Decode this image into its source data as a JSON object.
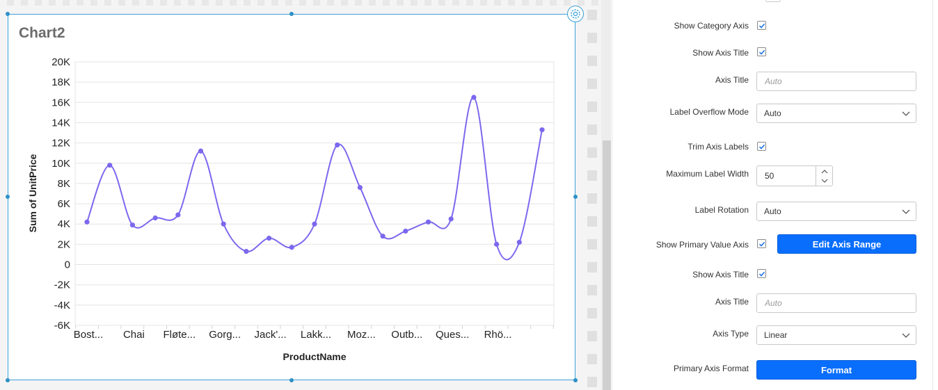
{
  "widget": {
    "title": "Chart2"
  },
  "chart_data": {
    "type": "line",
    "title": "Chart2",
    "xlabel": "ProductName",
    "ylabel": "Sum of UnitPrice",
    "ylim": [
      -6000,
      20000
    ],
    "yticks": [
      "20K",
      "18K",
      "16K",
      "14K",
      "12K",
      "10K",
      "8K",
      "6K",
      "4K",
      "2K",
      "0",
      "-2K",
      "-4K",
      "-6K"
    ],
    "ytick_values": [
      20000,
      18000,
      16000,
      14000,
      12000,
      10000,
      8000,
      6000,
      4000,
      2000,
      0,
      -2000,
      -4000,
      -6000
    ],
    "x_tick_labels": [
      "Bost...",
      "Chai",
      "Fløte...",
      "Gorg...",
      "Jack'...",
      "Lakk...",
      "Moz...",
      "Outb...",
      "Ques...",
      "Rhö..."
    ],
    "series": [
      {
        "values": [
          4200,
          9800,
          3900,
          4600,
          4900,
          11200,
          4000,
          1300,
          2600,
          1700,
          4000,
          11800,
          7600,
          2800,
          3300,
          4200,
          4500,
          16500,
          2000,
          2200,
          13300
        ]
      }
    ],
    "line_color": "#7b68ee",
    "grid": true,
    "legend": "none"
  },
  "properties": {
    "show_category_axis": {
      "label": "Show Category Axis",
      "checked": true
    },
    "show_axis_title_1": {
      "label": "Show Axis Title",
      "checked": true
    },
    "axis_title_1": {
      "label": "Axis Title",
      "placeholder": "Auto",
      "value": ""
    },
    "label_overflow_mode": {
      "label": "Label Overflow Mode",
      "value": "Auto"
    },
    "trim_axis_labels": {
      "label": "Trim Axis Labels",
      "checked": true
    },
    "maximum_label_width": {
      "label": "Maximum Label Width",
      "value": "50"
    },
    "label_rotation": {
      "label": "Label Rotation",
      "value": "Auto"
    },
    "show_primary_value_axis": {
      "label": "Show Primary Value Axis",
      "checked": true
    },
    "edit_axis_range": {
      "label": "Edit Axis Range"
    },
    "show_axis_title_2": {
      "label": "Show Axis Title",
      "checked": true
    },
    "axis_title_2": {
      "label": "Axis Title",
      "placeholder": "Auto",
      "value": ""
    },
    "axis_type": {
      "label": "Axis Type",
      "value": "Linear"
    },
    "primary_axis_format": {
      "label": "Primary Axis Format",
      "button": "Format"
    }
  },
  "colors": {
    "accent": "#0a6efd",
    "selection": "#3aa0d8",
    "series": "#7b68ee"
  }
}
